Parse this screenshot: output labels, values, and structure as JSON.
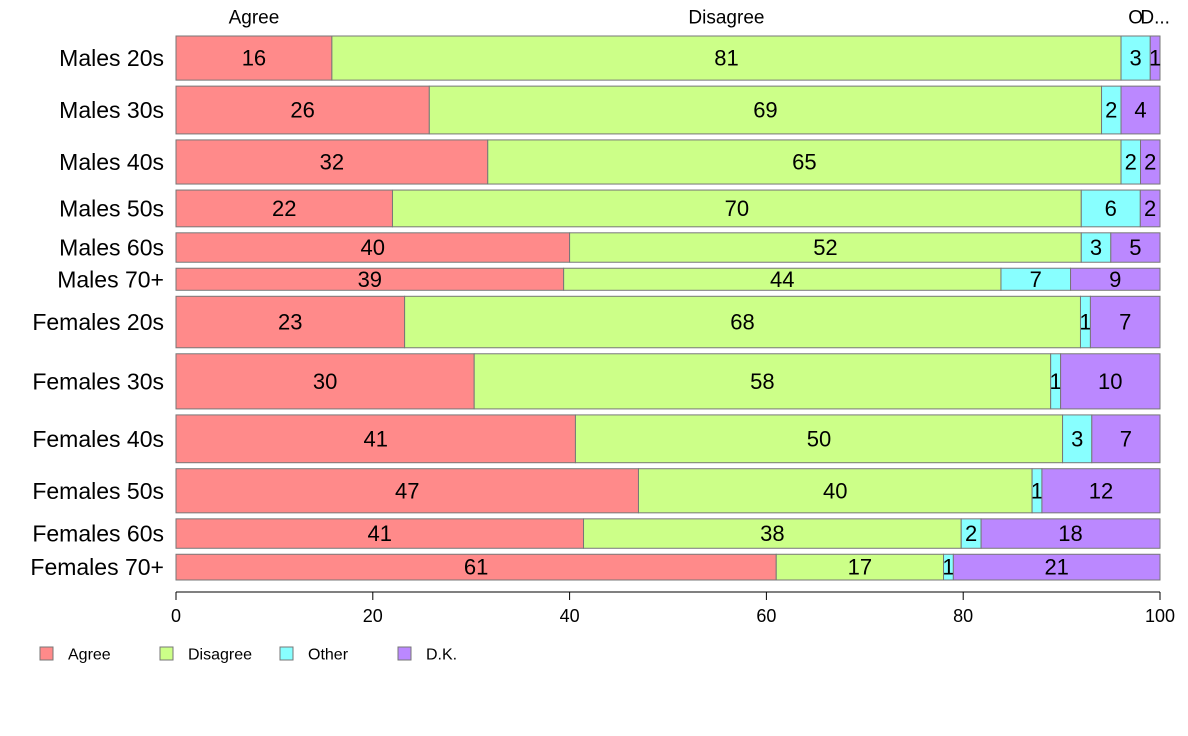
{
  "chart_data": {
    "type": "bar",
    "orientation": "horizontal",
    "stacked": true,
    "categories": [
      "Males 20s",
      "Males 30s",
      "Males 40s",
      "Males 50s",
      "Males 60s",
      "Males 70+",
      "Females 20s",
      "Females 30s",
      "Females 40s",
      "Females 50s",
      "Females 60s",
      "Females 70+"
    ],
    "series": [
      {
        "name": "Agree",
        "color": "#ff8a8a",
        "values": [
          16,
          26,
          32,
          22,
          40,
          39,
          23,
          30,
          41,
          47,
          41,
          61
        ]
      },
      {
        "name": "Disagree",
        "color": "#ccff88",
        "values": [
          81,
          69,
          65,
          70,
          52,
          44,
          68,
          58,
          50,
          40,
          38,
          17
        ]
      },
      {
        "name": "Other",
        "color": "#88ffff",
        "values": [
          3,
          2,
          2,
          6,
          3,
          7,
          1,
          1,
          3,
          1,
          2,
          1
        ]
      },
      {
        "name": "D.K.",
        "color": "#bb88ff",
        "values": [
          1,
          4,
          2,
          2,
          5,
          9,
          7,
          10,
          7,
          12,
          18,
          21
        ]
      }
    ],
    "bar_widths": [
      6.0,
      6.5,
      6.0,
      5.0,
      4.0,
      3.0,
      7.0,
      7.5,
      6.5,
      6.0,
      4.0,
      3.5
    ],
    "top_labels": [
      "Agree",
      "Disagree",
      "O",
      "D..."
    ],
    "xlim": [
      0,
      100
    ],
    "xticks": [
      0,
      20,
      40,
      60,
      80,
      100
    ],
    "legend_position": "bottom-left",
    "grid": false
  }
}
